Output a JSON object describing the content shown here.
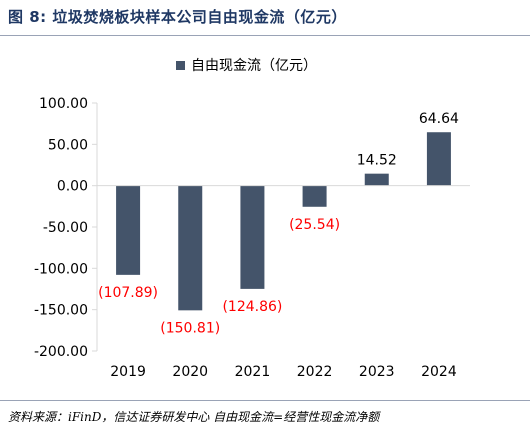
{
  "figure": {
    "title": "图 8:  垃圾焚烧板块样本公司自由现金流（亿元）",
    "source": "资料来源：iFinD，信达证券研发中心    自由现金流=经营性现金流净额"
  },
  "chart_data": {
    "type": "bar",
    "categories": [
      "2019",
      "2020",
      "2021",
      "2022",
      "2023",
      "2024"
    ],
    "series": [
      {
        "name": "自由现金流（亿元）",
        "values": [
          -107.89,
          -150.81,
          -124.86,
          -25.54,
          14.52,
          64.64
        ],
        "labels": [
          "(107.89)",
          "(150.81)",
          "(124.86)",
          "(25.54)",
          "14.52",
          "64.64"
        ]
      }
    ],
    "yticks": [
      "100.00",
      "50.00",
      "0.00",
      "-50.00",
      "-100.00",
      "-150.00",
      "-200.00"
    ],
    "ylim": [
      -200,
      100
    ],
    "grid": false,
    "legend": "top-center",
    "colors": {
      "bar": "#44546a",
      "negative_label": "#ff0000",
      "positive_label": "#000000",
      "axis": "#d9d9d9"
    }
  }
}
